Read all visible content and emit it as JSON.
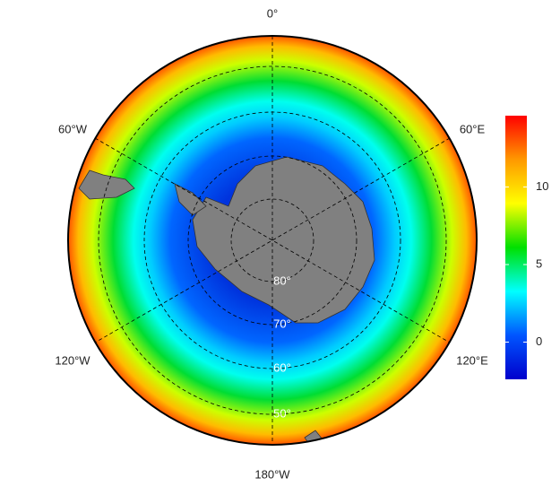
{
  "map": {
    "longitude_labels": [
      "0°",
      "60°E",
      "120°E",
      "180°W",
      "120°W",
      "60°W"
    ],
    "latitude_labels": [
      "80°",
      "70°",
      "60°",
      "50°"
    ],
    "colorbar": {
      "lim": [
        -2.4,
        14.6
      ],
      "ticks": [
        0,
        5,
        10
      ],
      "colors": [
        "#0000cc",
        "#0055ff",
        "#00ffff",
        "#00e000",
        "#ffff00",
        "#ff9900",
        "#ff0000"
      ]
    }
  }
}
